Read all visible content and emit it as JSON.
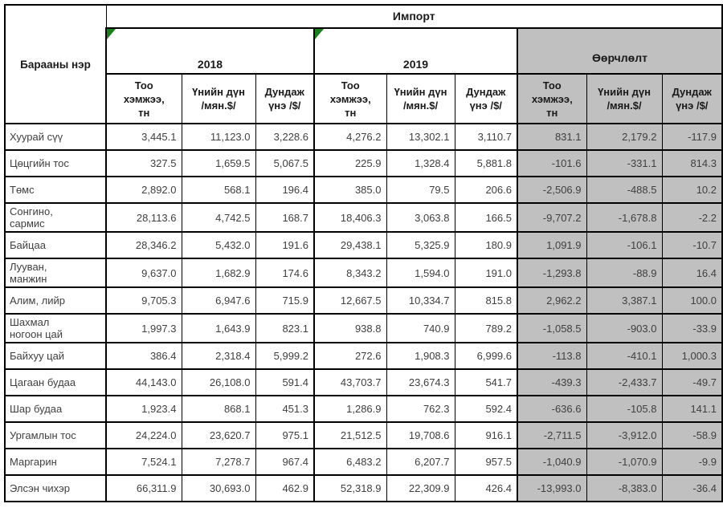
{
  "chart_data": {
    "type": "table",
    "title": "Импорт",
    "row_header": "Барааны нэр",
    "groups": [
      {
        "label": "2018",
        "corner_marker": true
      },
      {
        "label": "2019",
        "corner_marker": true
      },
      {
        "label": "Өөрчлөлт",
        "corner_marker": false,
        "highlighted": true
      }
    ],
    "subcolumns": [
      "Тоо\nхэмжээ,\nтн",
      "Үнийн дүн\n/мян.$/",
      "Дундаж\nүнэ /$/"
    ],
    "rows": [
      {
        "name": "Хуурай сүү",
        "values": [
          "3,445.1",
          "11,123.0",
          "3,228.6",
          "4,276.2",
          "13,302.1",
          "3,110.7",
          "831.1",
          "2,179.2",
          "-117.9"
        ]
      },
      {
        "name": "Цөцгийн тос",
        "values": [
          "327.5",
          "1,659.5",
          "5,067.5",
          "225.9",
          "1,328.4",
          "5,881.8",
          "-101.6",
          "-331.1",
          "814.3"
        ]
      },
      {
        "name": "Төмс",
        "values": [
          "2,892.0",
          "568.1",
          "196.4",
          "385.0",
          "79.5",
          "206.6",
          "-2,506.9",
          "-488.5",
          "10.2"
        ]
      },
      {
        "name": "Сонгино,\nсармис",
        "values": [
          "28,113.6",
          "4,742.5",
          "168.7",
          "18,406.3",
          "3,063.8",
          "166.5",
          "-9,707.2",
          "-1,678.8",
          "-2.2"
        ]
      },
      {
        "name": "Байцаа",
        "values": [
          "28,346.2",
          "5,432.0",
          "191.6",
          "29,438.1",
          "5,325.9",
          "180.9",
          "1,091.9",
          "-106.1",
          "-10.7"
        ]
      },
      {
        "name": "Лууван,\nманжин",
        "values": [
          "9,637.0",
          "1,682.9",
          "174.6",
          "8,343.2",
          "1,594.0",
          "191.0",
          "-1,293.8",
          "-88.9",
          "16.4"
        ]
      },
      {
        "name": "Алим, лийр",
        "values": [
          "9,705.3",
          "6,947.6",
          "715.9",
          "12,667.5",
          "10,334.7",
          "815.8",
          "2,962.2",
          "3,387.1",
          "100.0"
        ]
      },
      {
        "name": "Шахмал\nногоон цай",
        "values": [
          "1,997.3",
          "1,643.9",
          "823.1",
          "938.8",
          "740.9",
          "789.2",
          "-1,058.5",
          "-903.0",
          "-33.9"
        ]
      },
      {
        "name": "Байхуу цай",
        "values": [
          "386.4",
          "2,318.4",
          "5,999.2",
          "272.6",
          "1,908.3",
          "6,999.6",
          "-113.8",
          "-410.1",
          "1,000.3"
        ]
      },
      {
        "name": "Цагаан будаа",
        "values": [
          "44,143.0",
          "26,108.0",
          "591.4",
          "43,703.7",
          "23,674.3",
          "541.7",
          "-439.3",
          "-2,433.7",
          "-49.7"
        ]
      },
      {
        "name": "Шар будаа",
        "values": [
          "1,923.4",
          "868.1",
          "451.3",
          "1,286.9",
          "762.3",
          "592.4",
          "-636.6",
          "-105.8",
          "141.1"
        ]
      },
      {
        "name": "Ургамлын тос",
        "values": [
          "24,224.0",
          "23,620.7",
          "975.1",
          "21,512.5",
          "19,708.6",
          "916.1",
          "-2,711.5",
          "-3,912.0",
          "-58.9"
        ]
      },
      {
        "name": "Маргарин",
        "values": [
          "7,524.1",
          "7,278.7",
          "967.4",
          "6,483.2",
          "6,207.7",
          "957.5",
          "-1,040.9",
          "-1,070.9",
          "-9.9"
        ]
      },
      {
        "name": "Элсэн чихэр",
        "values": [
          "66,311.9",
          "30,693.0",
          "462.9",
          "52,318.9",
          "22,309.9",
          "426.4",
          "-13,993.0",
          "-8,383.0",
          "-36.4"
        ]
      }
    ],
    "colors": {
      "highlight_background": "#c0c0c0",
      "corner_marker_green": "#1e7d1e",
      "border": "#000000",
      "data_text": "#3f3f3f"
    }
  }
}
